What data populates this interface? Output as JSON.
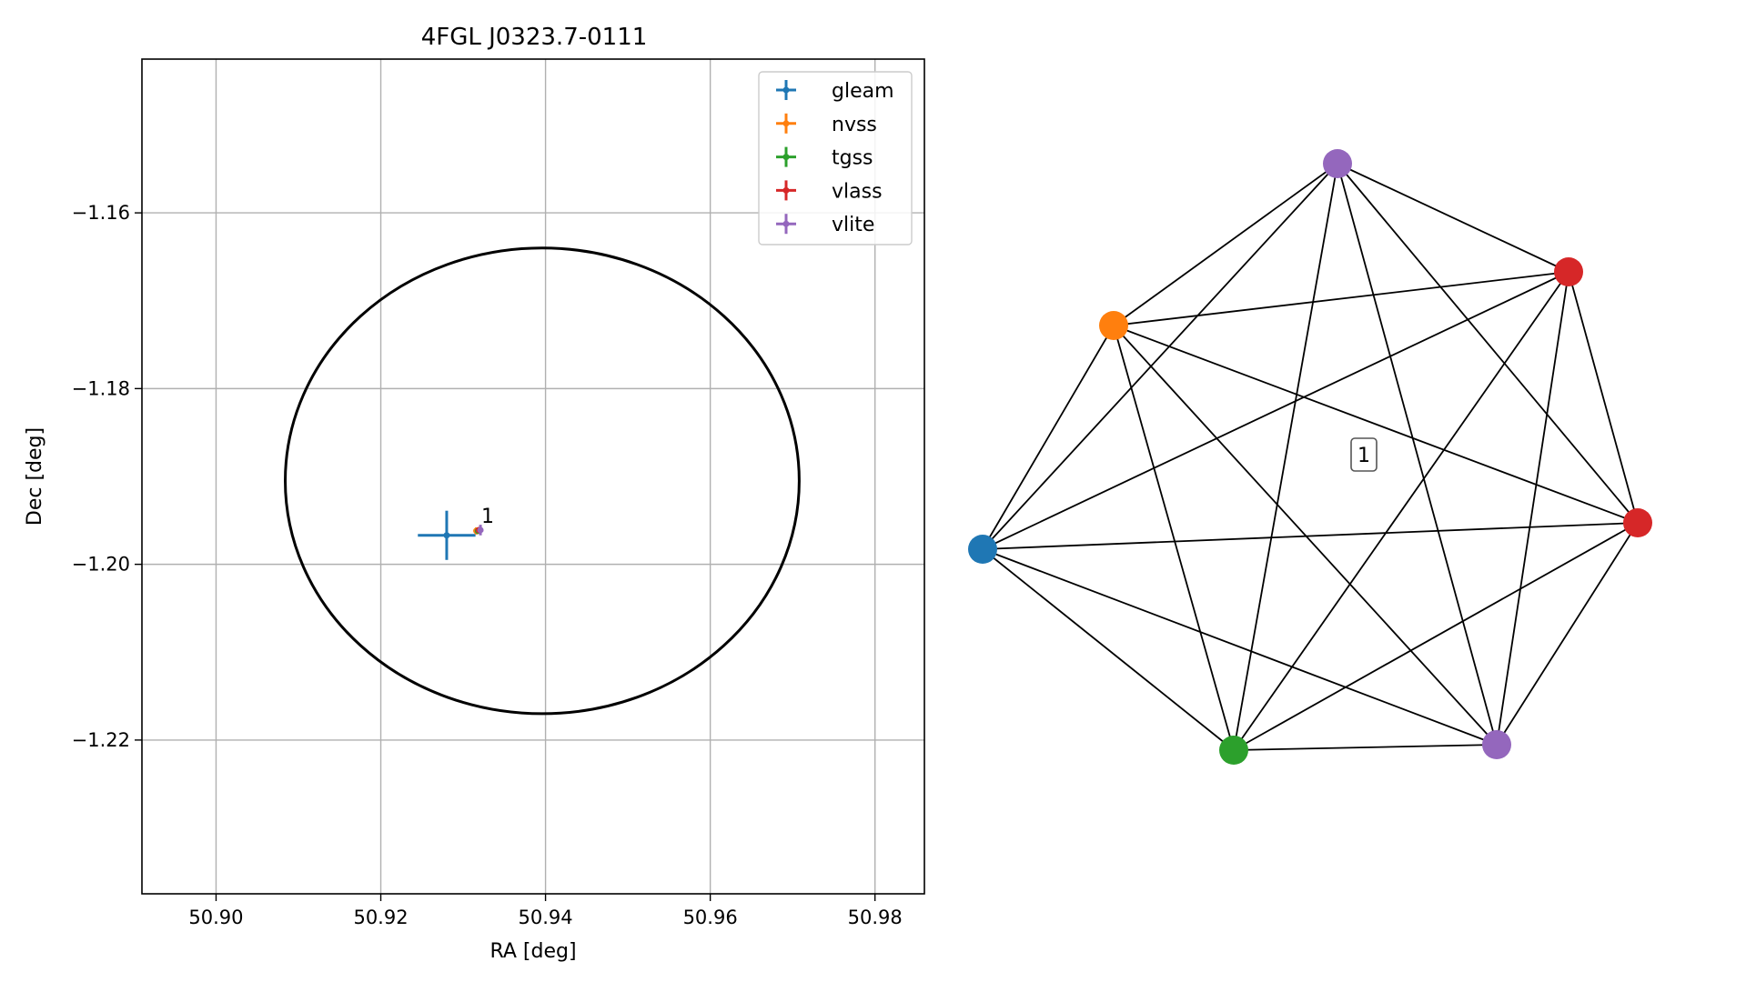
{
  "chart_data": [
    {
      "type": "scatter",
      "title": "4FGL J0323.7-0111",
      "xlabel": "RA [deg]",
      "ylabel": "Dec [deg]",
      "xlim": [
        50.891,
        50.986
      ],
      "ylim": [
        -1.2375,
        -1.1425
      ],
      "x_ticks": [
        50.9,
        50.92,
        50.94,
        50.96,
        50.98
      ],
      "x_tick_labels": [
        "50.90",
        "50.92",
        "50.94",
        "50.96",
        "50.98"
      ],
      "y_ticks": [
        -1.16,
        -1.18,
        -1.2,
        -1.22
      ],
      "y_tick_labels": [
        "−1.16",
        "−1.18",
        "−1.20",
        "−1.22"
      ],
      "grid": true,
      "legend_position": "top-right",
      "series": [
        {
          "name": "gleam",
          "color": "#1f77b4",
          "points": [
            {
              "x": 50.928,
              "y": -1.1967,
              "xerr": 0.0035,
              "yerr": 0.0028
            }
          ]
        },
        {
          "name": "nvss",
          "color": "#ff7f0e",
          "points": [
            {
              "x": 50.9316,
              "y": -1.1962,
              "xerr": 0.0003,
              "yerr": 0.0004
            }
          ]
        },
        {
          "name": "tgss",
          "color": "#2ca02c",
          "points": [
            {
              "x": 50.9318,
              "y": -1.1962,
              "xerr": 0.0002,
              "yerr": 0.0002
            }
          ]
        },
        {
          "name": "vlass",
          "color": "#d62728",
          "points": [
            {
              "x": 50.9319,
              "y": -1.1961,
              "xerr": 0.0001,
              "yerr": 0.0001
            }
          ]
        },
        {
          "name": "vlite",
          "color": "#9467bd",
          "points": [
            {
              "x": 50.9321,
              "y": -1.1961,
              "xerr": 0.0002,
              "yerr": 0.0006
            }
          ]
        }
      ],
      "ellipse": {
        "center": [
          50.9396,
          -1.1905
        ],
        "radius_x": 0.0312,
        "radius_y": 0.0265,
        "color": "#000000"
      },
      "annotations": [
        {
          "text": "1",
          "x": 50.9322,
          "y": -1.1953
        }
      ]
    },
    {
      "type": "network",
      "cluster_label": "1",
      "nodes": [
        {
          "id": "gleam",
          "color": "#1f77b4"
        },
        {
          "id": "nvss",
          "color": "#ff7f0e"
        },
        {
          "id": "vlite_a",
          "color": "#9467bd"
        },
        {
          "id": "vlass_a",
          "color": "#d62728"
        },
        {
          "id": "vlass_b",
          "color": "#d62728"
        },
        {
          "id": "vlite_b",
          "color": "#9467bd"
        },
        {
          "id": "tgss",
          "color": "#2ca02c"
        }
      ],
      "edges": "complete"
    }
  ]
}
